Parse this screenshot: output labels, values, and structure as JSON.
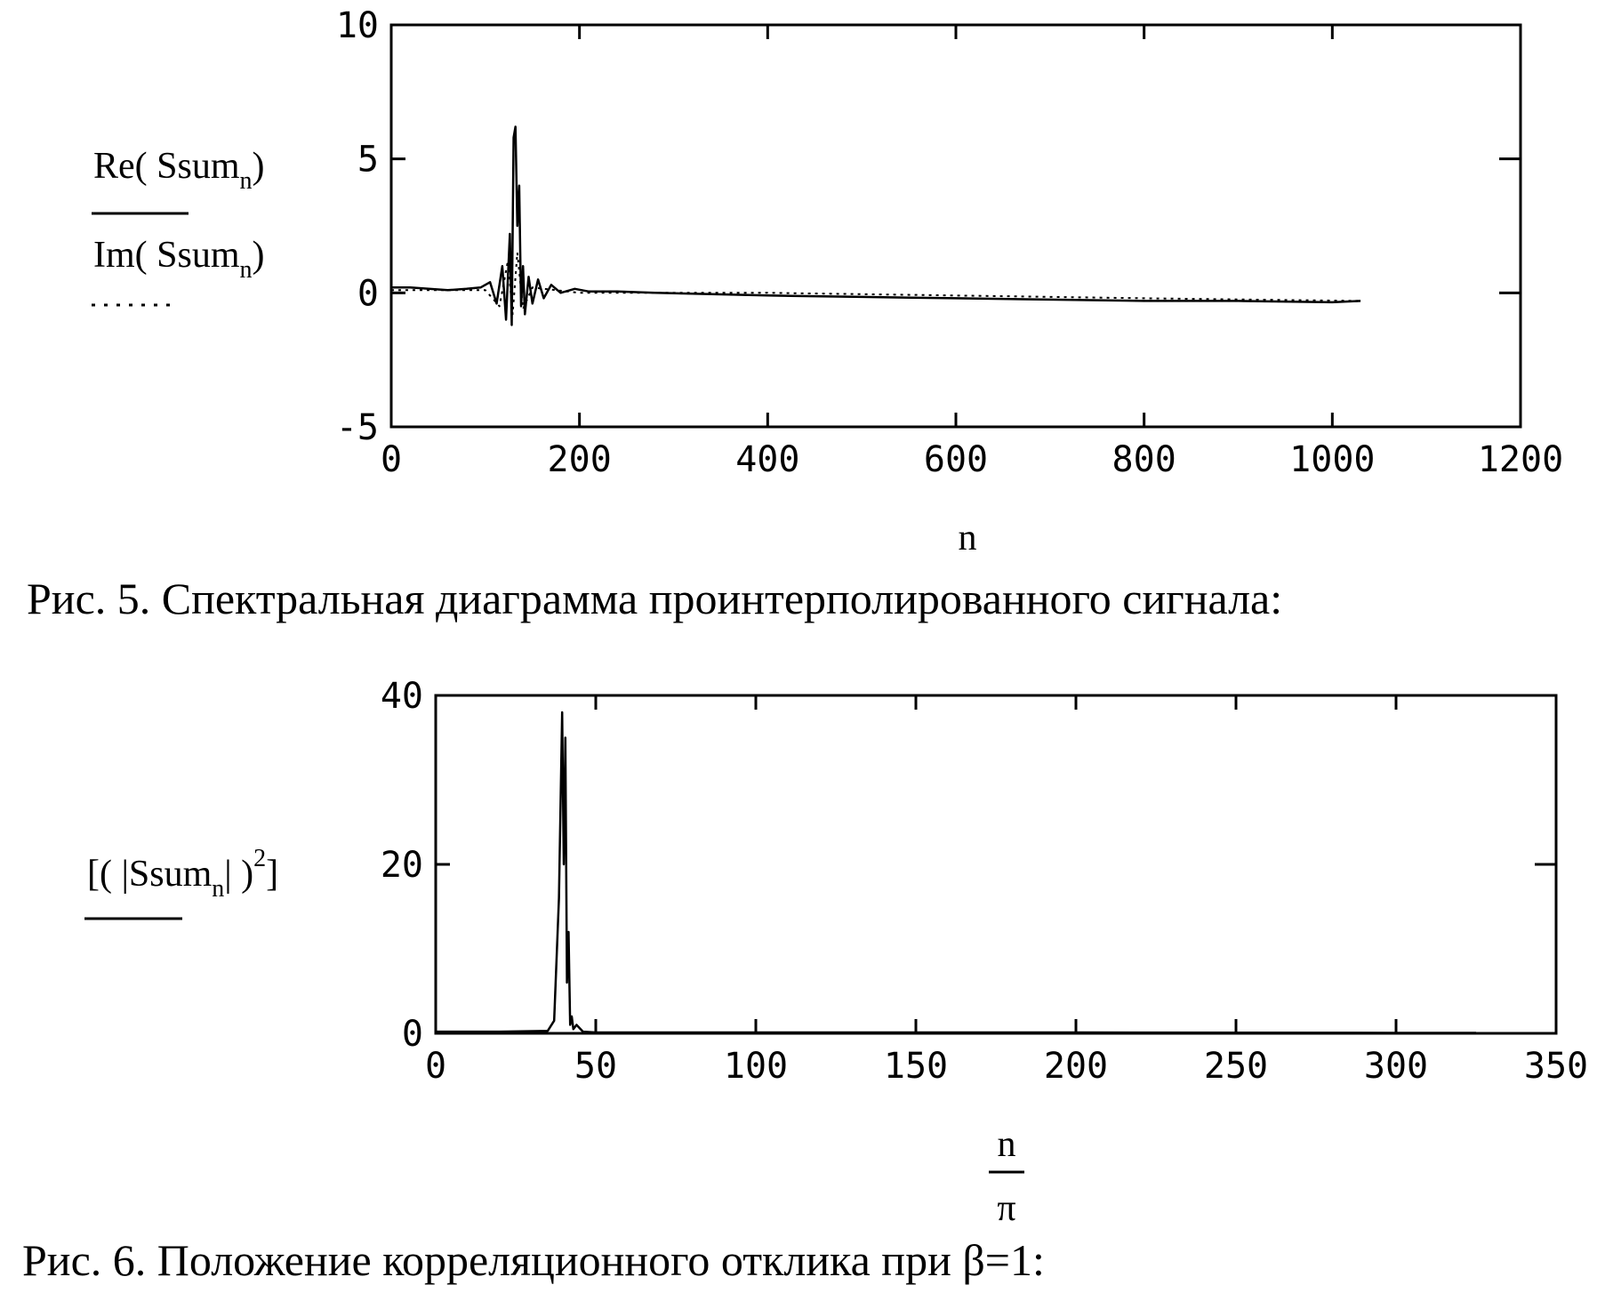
{
  "figure5": {
    "caption": "Рис. 5. Спектральная диаграмма проинтерполированного сигнала:",
    "chart_data": {
      "type": "line",
      "xlabel": "n",
      "xlim": [
        0,
        1200
      ],
      "ylim": [
        -5,
        10
      ],
      "x_ticks": [
        "0",
        "200",
        "400",
        "600",
        "800",
        "1000",
        "1200"
      ],
      "y_ticks": [
        "-5",
        "0",
        "5",
        "10"
      ],
      "x_tick_values": [
        0,
        200,
        400,
        600,
        800,
        1000,
        1200
      ],
      "y_tick_values": [
        -5,
        0,
        5,
        10
      ],
      "grid": false,
      "legend_position": "left",
      "series": [
        {
          "name": "Re(Ssum_n)",
          "legend_base": "Re",
          "legend_arg": "Ssum",
          "legend_sub": "n",
          "style": "solid",
          "x": [
            0,
            20,
            40,
            60,
            80,
            95,
            105,
            112,
            118,
            122,
            126,
            128,
            130,
            132,
            134,
            136,
            138,
            140,
            142,
            146,
            150,
            156,
            162,
            170,
            180,
            195,
            210,
            240,
            280,
            340,
            400,
            500,
            600,
            700,
            800,
            900,
            1000,
            1030
          ],
          "y": [
            0.2,
            0.2,
            0.15,
            0.1,
            0.15,
            0.2,
            0.4,
            -0.4,
            1,
            -1,
            2.2,
            -1.2,
            5.8,
            6.2,
            2.5,
            4,
            -0.5,
            1,
            -0.8,
            0.6,
            -0.4,
            0.5,
            -0.2,
            0.3,
            0,
            0.15,
            0.05,
            0.05,
            0,
            -0.05,
            -0.1,
            -0.15,
            -0.2,
            -0.25,
            -0.3,
            -0.3,
            -0.35,
            -0.3
          ]
        },
        {
          "name": "Im(Ssum_n)",
          "legend_base": "Im",
          "legend_arg": "Ssum",
          "legend_sub": "n",
          "style": "dotted",
          "x": [
            0,
            100,
            115,
            124,
            129,
            134,
            140,
            150,
            200,
            400,
            600,
            800,
            1030
          ],
          "y": [
            0.1,
            0.1,
            -0.5,
            1.2,
            -0.8,
            1.5,
            -0.6,
            0.2,
            0,
            0,
            -0.1,
            -0.2,
            -0.3
          ]
        }
      ]
    }
  },
  "figure6": {
    "caption": "Рис. 6. Положение корреляционного отклика при β=1:",
    "chart_data": {
      "type": "line",
      "xlabel": {
        "numerator": "n",
        "denominator": "π"
      },
      "xlim": [
        0,
        350
      ],
      "ylim": [
        0,
        40
      ],
      "x_ticks": [
        "0",
        "50",
        "100",
        "150",
        "200",
        "250",
        "300",
        "350"
      ],
      "y_ticks": [
        "0",
        "20",
        "40"
      ],
      "x_tick_values": [
        0,
        50,
        100,
        150,
        200,
        250,
        300,
        350
      ],
      "y_tick_values": [
        0,
        20,
        40
      ],
      "grid": false,
      "legend_position": "left",
      "series": [
        {
          "name": "[(|Ssum_n|)^2]",
          "legend_arg": "Ssum",
          "legend_sub": "n",
          "legend_sup": "2",
          "style": "solid",
          "x": [
            0,
            20,
            35,
            37,
            38.5,
            39.5,
            40,
            40.5,
            41,
            41.5,
            42,
            42.5,
            43,
            44,
            46,
            50,
            100,
            200,
            300,
            325
          ],
          "y": [
            0.2,
            0.2,
            0.3,
            1.5,
            16,
            38,
            20,
            35,
            6,
            12,
            1,
            2,
            0.5,
            1,
            0.2,
            0.1,
            0.1,
            0.1,
            0.05,
            0.05
          ]
        }
      ]
    }
  }
}
